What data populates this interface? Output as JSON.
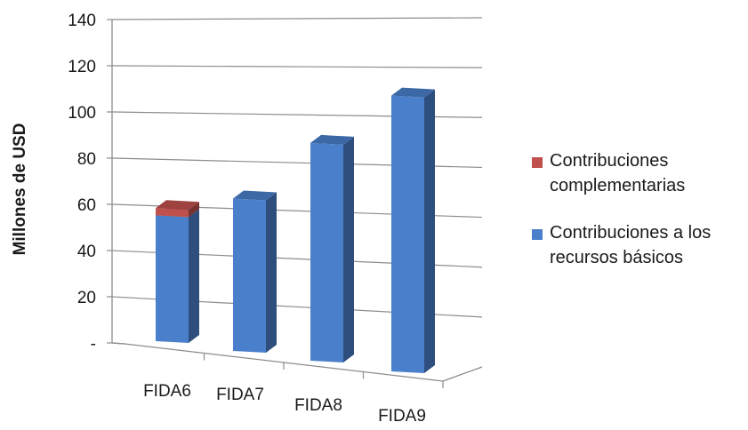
{
  "chart_data": {
    "type": "bar",
    "stacked": true,
    "three_d": true,
    "categories": [
      "FIDA6",
      "FIDA7",
      "FIDA8",
      "FIDA9"
    ],
    "series": [
      {
        "name": "Contribuciones a los recursos básicos",
        "values": [
          52,
          63,
          90,
          114
        ],
        "color": "#4a7fcb"
      },
      {
        "name": "Contribuciones complementarias",
        "values": [
          3,
          0,
          0,
          0
        ],
        "color": "#c0504d"
      }
    ],
    "title": "",
    "xlabel": "",
    "ylabel": "Millones de USD",
    "ylim": [
      0,
      140
    ],
    "yticks": [
      "-",
      "20",
      "40",
      "60",
      "80",
      "100",
      "120",
      "140"
    ],
    "grid": true,
    "legend_position": "right"
  }
}
